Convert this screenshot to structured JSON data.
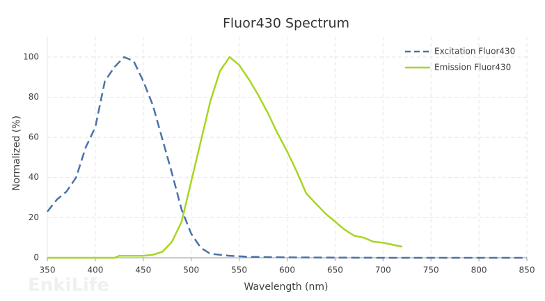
{
  "chart_data": {
    "type": "line",
    "title": "Fluor430  Spectrum",
    "watermark": "EnkiLife",
    "x_label": "Wavelength (nm)",
    "y_label": "Normalized (%)",
    "xlim": [
      350,
      850
    ],
    "ylim": [
      0,
      110
    ],
    "xticks": [
      350,
      400,
      450,
      500,
      550,
      600,
      650,
      700,
      750,
      800,
      850
    ],
    "yticks": [
      0,
      20,
      40,
      60,
      80,
      100
    ],
    "grid": true,
    "legend": "top-right",
    "series": [
      {
        "name": "Excitation Fluor430",
        "color": "#4a72a8",
        "dashed": true,
        "x": [
          350,
          360,
          370,
          380,
          390,
          400,
          410,
          420,
          430,
          440,
          450,
          460,
          470,
          480,
          490,
          500,
          510,
          520,
          530,
          540,
          560,
          600,
          700,
          850
        ],
        "values": [
          23,
          29,
          33,
          40,
          55,
          65,
          88,
          95,
          100,
          98,
          88,
          76,
          59,
          42,
          24,
          12,
          5,
          2,
          1.5,
          1,
          0.5,
          0.2,
          0,
          0
        ]
      },
      {
        "name": "Emission Fluor430",
        "color": "#a6d620",
        "dashed": false,
        "x": [
          350,
          420,
          425,
          450,
          460,
          470,
          480,
          490,
          500,
          510,
          520,
          530,
          540,
          545,
          550,
          560,
          570,
          580,
          590,
          600,
          610,
          620,
          630,
          640,
          650,
          660,
          670,
          680,
          690,
          700,
          710,
          720
        ],
        "values": [
          0,
          0,
          1,
          1,
          1.5,
          3,
          8,
          18,
          38,
          58,
          78,
          93,
          100,
          98,
          96,
          89,
          81,
          72,
          62,
          53,
          43,
          32,
          27,
          22,
          18,
          14,
          11,
          10,
          8,
          7.5,
          6.5,
          5.5
        ]
      }
    ]
  }
}
